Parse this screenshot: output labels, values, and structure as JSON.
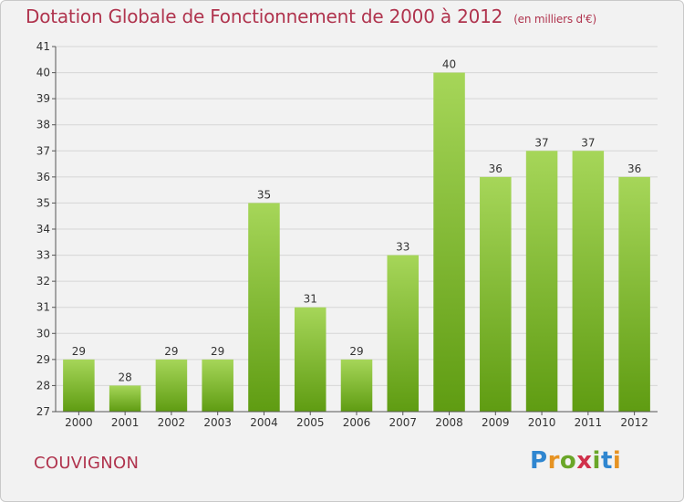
{
  "header": {
    "title": "Dotation Globale de Fonctionnement de 2000 à 2012",
    "unit": "(en milliers d'€)"
  },
  "footer": {
    "town": "COUVIGNON",
    "logo": {
      "letters": [
        "P",
        "r",
        "o",
        "x",
        "i",
        "t",
        "i"
      ],
      "colors": [
        "#2f86d0",
        "#e69323",
        "#6aa628",
        "#d0304a",
        "#6aa628",
        "#2f86d0",
        "#e69323"
      ]
    }
  },
  "colors": {
    "bar_top": "#a6d659",
    "bar_bottom": "#5f9c12",
    "title": "#b0344e",
    "grid": "#d6d6d6",
    "axis": "#555555"
  },
  "chart_data": {
    "type": "bar",
    "title": "Dotation Globale de Fonctionnement de 2000 à 2012",
    "subtitle": "(en milliers d'€)",
    "xlabel": "",
    "ylabel": "",
    "categories": [
      "2000",
      "2001",
      "2002",
      "2003",
      "2004",
      "2005",
      "2006",
      "2007",
      "2008",
      "2009",
      "2010",
      "2011",
      "2012"
    ],
    "values": [
      29,
      28,
      29,
      29,
      35,
      31,
      29,
      33,
      40,
      36,
      37,
      37,
      36
    ],
    "ylim": [
      27,
      41
    ],
    "yticks": [
      27,
      28,
      29,
      30,
      31,
      32,
      33,
      34,
      35,
      36,
      37,
      38,
      39,
      40,
      41
    ],
    "grid": true,
    "legend": "none"
  }
}
